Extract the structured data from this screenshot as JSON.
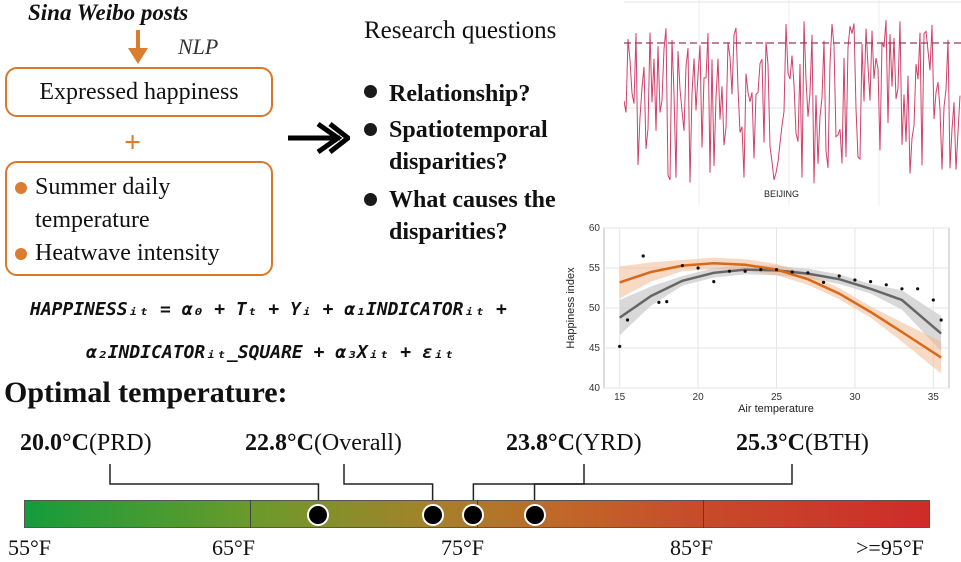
{
  "input": {
    "source_title": "Sina Weibo posts",
    "nlp_label": "NLP",
    "expressed_label": "Expressed happiness",
    "plus_sign": "+",
    "factors": [
      "Summer daily temperature",
      "Heatwave intensity"
    ]
  },
  "research": {
    "title": "Research questions",
    "questions": [
      "Relationship?",
      "Spatiotemporal disparities?",
      "What causes the disparities?"
    ]
  },
  "equation": {
    "line1": "HAPPINESSᵢₜ = α₀ + Tₜ + Yᵢ + α₁INDICATORᵢₜ +",
    "line2": "α₂INDICATORᵢₜ_SQUARE + α₃Xᵢₜ + εᵢₜ"
  },
  "beijing_chart": {
    "city_label": "BEIJING",
    "line_color": "#d0406a"
  },
  "chart_data": {
    "type": "line",
    "xlabel": "Air temperature",
    "ylabel": "Happiness index",
    "xlim": [
      14,
      36
    ],
    "ylim": [
      40,
      60
    ],
    "x_ticks": [
      "15",
      "20",
      "25",
      "30",
      "35"
    ],
    "y_ticks": [
      "40",
      "45",
      "50",
      "55",
      "60"
    ],
    "series": [
      {
        "name": "orange fit",
        "color": "#d8691a",
        "x": [
          15,
          17,
          19,
          21,
          23,
          25,
          27,
          29,
          31,
          33,
          35.5
        ],
        "values": [
          53.2,
          54.5,
          55.3,
          55.6,
          55.4,
          54.8,
          53.6,
          51.8,
          49.5,
          47.0,
          43.8
        ]
      },
      {
        "name": "gray fit",
        "color": "#666666",
        "x": [
          15,
          17,
          19,
          21,
          23,
          25,
          27,
          29,
          31,
          33,
          35.5
        ],
        "values": [
          48.8,
          51.5,
          53.4,
          54.4,
          54.8,
          54.7,
          54.3,
          53.6,
          52.4,
          51.0,
          46.8
        ]
      }
    ],
    "points": {
      "x": [
        15,
        15.5,
        16.5,
        17.5,
        18,
        19,
        20,
        21,
        22,
        23,
        24,
        25,
        26,
        27,
        28,
        29,
        30,
        31,
        32,
        33,
        34,
        35,
        35.5
      ],
      "values": [
        45.2,
        48.5,
        56.5,
        50.7,
        50.8,
        55.3,
        55.0,
        53.3,
        54.6,
        54.6,
        54.8,
        54.8,
        54.5,
        54.4,
        53.2,
        54.0,
        53.5,
        53.3,
        52.9,
        52.4,
        52.4,
        51.0,
        48.5
      ]
    }
  },
  "optimal": {
    "title": "Optimal temperature:",
    "labels": [
      {
        "temp": "20.0°C",
        "region": "(PRD)",
        "f": 68
      },
      {
        "temp": "22.8°C",
        "region": "(Overall)",
        "f": 73.04
      },
      {
        "temp": "23.8°C",
        "region": "(YRD)",
        "f": 74.84
      },
      {
        "temp": "25.3°C",
        "region": "(BTH)",
        "f": 77.54
      }
    ],
    "scale": [
      "55°F",
      "65°F",
      "75°F",
      "85°F",
      ">=95°F"
    ]
  }
}
